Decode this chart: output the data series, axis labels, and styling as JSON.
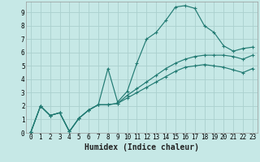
{
  "background_color": "#c6e8e6",
  "grid_color": "#aad0ce",
  "line_color": "#217a72",
  "xlabel": "Humidex (Indice chaleur)",
  "xlim": [
    -0.5,
    23.5
  ],
  "ylim": [
    0,
    9.8
  ],
  "xticks": [
    0,
    1,
    2,
    3,
    4,
    5,
    6,
    7,
    8,
    9,
    10,
    11,
    12,
    13,
    14,
    15,
    16,
    17,
    18,
    19,
    20,
    21,
    22,
    23
  ],
  "yticks": [
    0,
    1,
    2,
    3,
    4,
    5,
    6,
    7,
    8,
    9
  ],
  "series1_x": [
    0,
    1,
    2,
    3,
    4,
    5,
    6,
    7,
    8,
    9,
    10,
    11,
    12,
    13,
    14,
    15,
    16,
    17,
    18,
    19,
    20,
    21,
    22,
    23
  ],
  "series1_y": [
    0.05,
    2.0,
    1.3,
    1.5,
    0.1,
    1.1,
    1.7,
    2.1,
    2.1,
    2.2,
    2.6,
    3.0,
    3.4,
    3.8,
    4.2,
    4.6,
    4.9,
    5.0,
    5.1,
    5.0,
    4.9,
    4.7,
    4.5,
    4.8
  ],
  "series2_x": [
    0,
    1,
    2,
    3,
    4,
    5,
    6,
    7,
    8,
    9,
    10,
    11,
    12,
    13,
    14,
    15,
    16,
    17,
    18,
    19,
    20,
    21,
    22,
    23
  ],
  "series2_y": [
    0.05,
    2.0,
    1.3,
    1.5,
    0.1,
    1.1,
    1.7,
    2.1,
    2.1,
    2.2,
    2.8,
    3.3,
    3.8,
    4.3,
    4.8,
    5.2,
    5.5,
    5.7,
    5.8,
    5.8,
    5.8,
    5.7,
    5.5,
    5.8
  ],
  "series3_x": [
    0,
    1,
    2,
    3,
    4,
    5,
    6,
    7,
    8,
    9,
    10,
    11,
    12,
    13,
    14,
    15,
    16,
    17,
    18,
    19,
    20,
    21,
    22,
    23
  ],
  "series3_y": [
    0.05,
    2.0,
    1.3,
    1.5,
    0.1,
    1.1,
    1.7,
    2.1,
    4.8,
    2.3,
    3.1,
    5.2,
    7.0,
    7.5,
    8.4,
    9.4,
    9.5,
    9.3,
    8.0,
    7.5,
    6.5,
    6.1,
    6.3,
    6.4
  ],
  "xlabel_fontsize": 7,
  "tick_fontsize": 5.5,
  "linewidth": 0.85,
  "markersize": 3.5
}
